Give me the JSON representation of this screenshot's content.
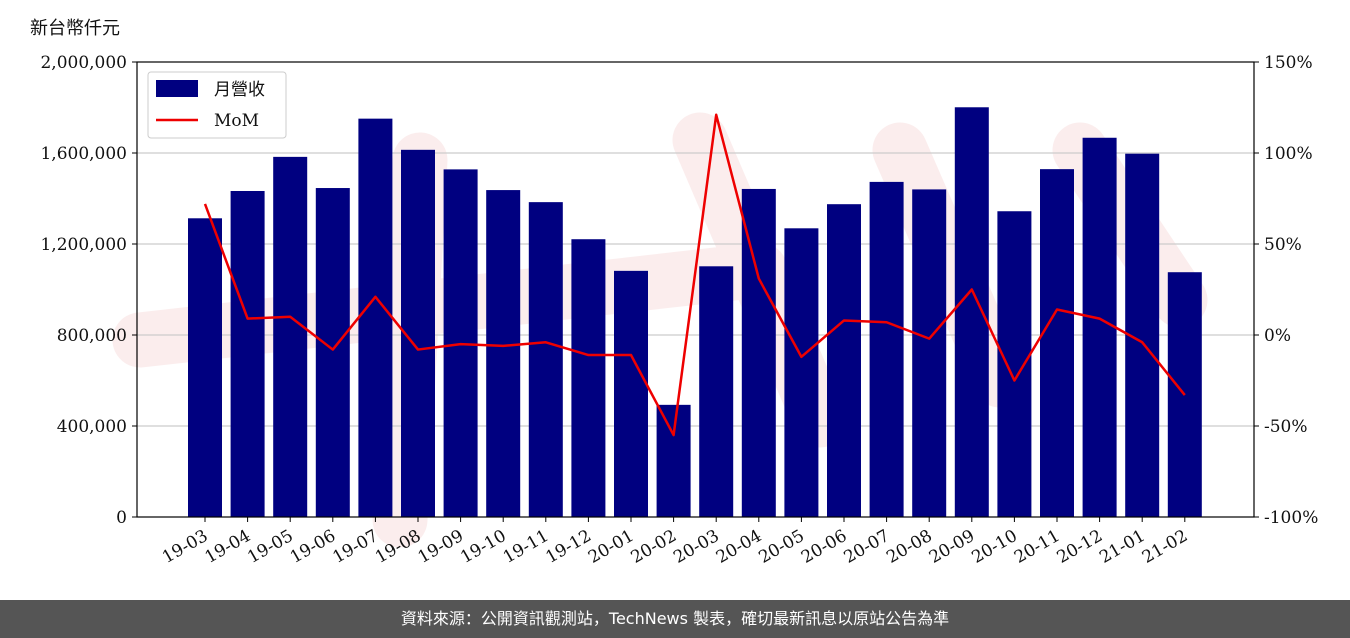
{
  "chart_data": {
    "type": "bar",
    "ylabel": "新台幣仟元",
    "categories": [
      "19-03",
      "19-04",
      "19-05",
      "19-06",
      "19-07",
      "19-08",
      "19-09",
      "19-10",
      "19-11",
      "19-12",
      "20-01",
      "20-02",
      "20-03",
      "20-04",
      "20-05",
      "20-06",
      "20-07",
      "20-08",
      "20-09",
      "20-10",
      "20-11",
      "20-12",
      "21-01",
      "21-02"
    ],
    "series": [
      {
        "name": "月營收",
        "type": "bar",
        "axis": "left",
        "color": "#000080",
        "values": [
          1313000,
          1433000,
          1583000,
          1446000,
          1751000,
          1614000,
          1528000,
          1437000,
          1384000,
          1221000,
          1082000,
          493000,
          1102000,
          1442000,
          1269000,
          1375000,
          1473000,
          1440000,
          1801000,
          1344000,
          1529000,
          1667000,
          1597000,
          1076000
        ]
      },
      {
        "name": "MoM",
        "type": "line",
        "axis": "right",
        "color": "#ee0000",
        "values": [
          72,
          9,
          10,
          -8,
          21,
          -8,
          -5,
          -6,
          -4,
          -11,
          -11,
          -55,
          121,
          31,
          -12,
          8,
          7,
          -2,
          25,
          -25,
          14,
          9,
          -4,
          -33
        ]
      }
    ],
    "ylim": [
      0,
      2000000
    ],
    "y2lim": [
      -100,
      150
    ],
    "yticks": [
      "0",
      "400,000",
      "800,000",
      "1,200,000",
      "1,600,000",
      "2,000,000"
    ],
    "y2ticks": [
      "-100%",
      "-50%",
      "0%",
      "50%",
      "100%",
      "150%"
    ],
    "grid": true,
    "legend": "top-left"
  },
  "footer_text": "資料來源：公開資訊觀測站，TechNews 製表，確切最新訊息以原站公告為準"
}
